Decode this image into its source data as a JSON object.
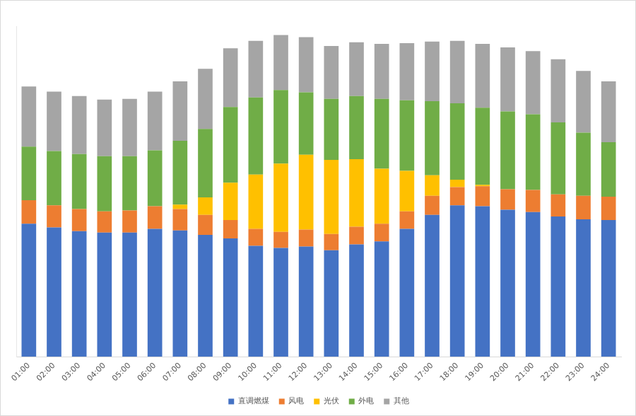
{
  "chart_data": {
    "type": "bar",
    "stacked": true,
    "grid": false,
    "legend": "bottom",
    "tick_labels": "x",
    "categories": [
      "01:00",
      "02:00",
      "03:00",
      "04:00",
      "05:00",
      "06:00",
      "07:00",
      "08:00",
      "09:00",
      "10:00",
      "11:00",
      "12:00",
      "13:00",
      "14:00",
      "15:00",
      "16:00",
      "17:00",
      "18:00",
      "19:00",
      "20:00",
      "21:00",
      "22:00",
      "23:00",
      "24:00"
    ],
    "ylim": [
      0,
      450
    ],
    "series": [
      {
        "name": "直调燃煤",
        "color": "#4472c4",
        "values": [
          181,
          176,
          171,
          169,
          169,
          174,
          172,
          166,
          161,
          151,
          148,
          150,
          145,
          153,
          157,
          174,
          193,
          206,
          205,
          200,
          197,
          191,
          187,
          186
        ]
      },
      {
        "name": "风电",
        "color": "#ed7d31",
        "values": [
          32,
          30,
          30,
          29,
          30,
          31,
          29,
          27,
          25,
          23,
          22,
          23,
          22,
          24,
          24,
          24,
          26,
          25,
          27,
          28,
          30,
          30,
          32,
          32
        ]
      },
      {
        "name": "光伏",
        "color": "#ffc000",
        "values": [
          0,
          0,
          0,
          0,
          0,
          0,
          6,
          24,
          51,
          74,
          93,
          102,
          101,
          92,
          75,
          55,
          28,
          10,
          2,
          0,
          0,
          0,
          0,
          0
        ]
      },
      {
        "name": "外电",
        "color": "#70ad47",
        "values": [
          73,
          74,
          75,
          75,
          74,
          76,
          87,
          93,
          103,
          105,
          100,
          85,
          83,
          86,
          95,
          96,
          101,
          104,
          105,
          106,
          103,
          98,
          86,
          74
        ]
      },
      {
        "name": "其他",
        "color": "#a5a5a5",
        "values": [
          82,
          81,
          79,
          77,
          78,
          80,
          81,
          82,
          80,
          77,
          75,
          75,
          72,
          73,
          75,
          78,
          81,
          85,
          87,
          87,
          86,
          86,
          84,
          83
        ]
      }
    ]
  }
}
